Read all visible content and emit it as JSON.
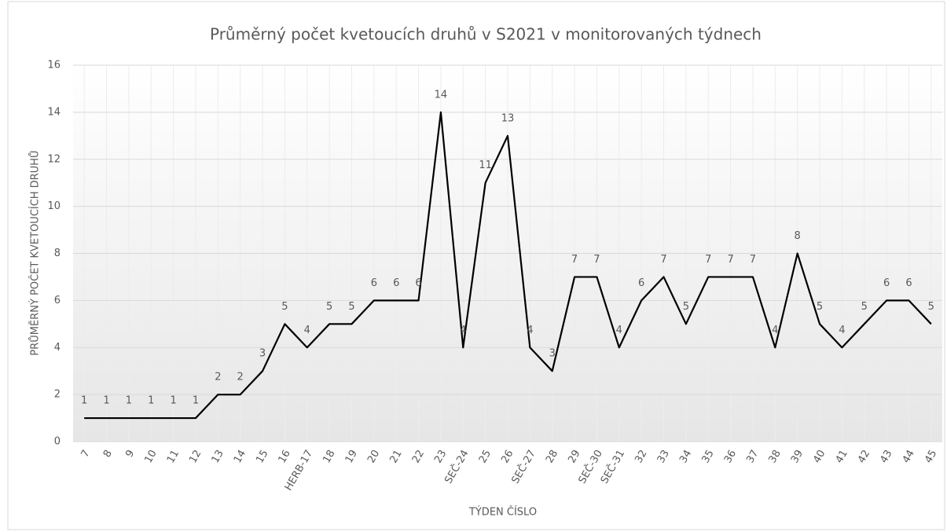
{
  "chart_data": {
    "type": "line",
    "title": "Průměrný počet kvetoucích druhů v S2021 v monitorovaných týdnech",
    "x_label": "TÝDEN ČÍSLO",
    "y_label": "PRŮMĚRNÝ POČET KVETOUCÍCH DRUHŮ",
    "categories": [
      "7",
      "8",
      "9",
      "10",
      "11",
      "12",
      "13",
      "14",
      "15",
      "16",
      "HERB-17",
      "18",
      "19",
      "20",
      "21",
      "22",
      "23",
      "SEČ-24",
      "25",
      "26",
      "SEČ-27",
      "28",
      "29",
      "SEČ-30",
      "SEČ-31",
      "32",
      "33",
      "34",
      "35",
      "36",
      "37",
      "38",
      "39",
      "40",
      "41",
      "42",
      "43",
      "44",
      "45"
    ],
    "values": [
      1,
      1,
      1,
      1,
      1,
      1,
      2,
      2,
      3,
      5,
      4,
      5,
      5,
      6,
      6,
      6,
      14,
      4,
      11,
      13,
      4,
      3,
      7,
      7,
      4,
      6,
      7,
      5,
      7,
      7,
      7,
      4,
      8,
      5,
      4,
      5,
      6,
      6,
      5
    ],
    "color": "#000000",
    "ylim": [
      0,
      16
    ],
    "yticks": [
      0,
      2,
      4,
      6,
      8,
      10,
      12,
      14,
      16
    ],
    "grid": true
  }
}
